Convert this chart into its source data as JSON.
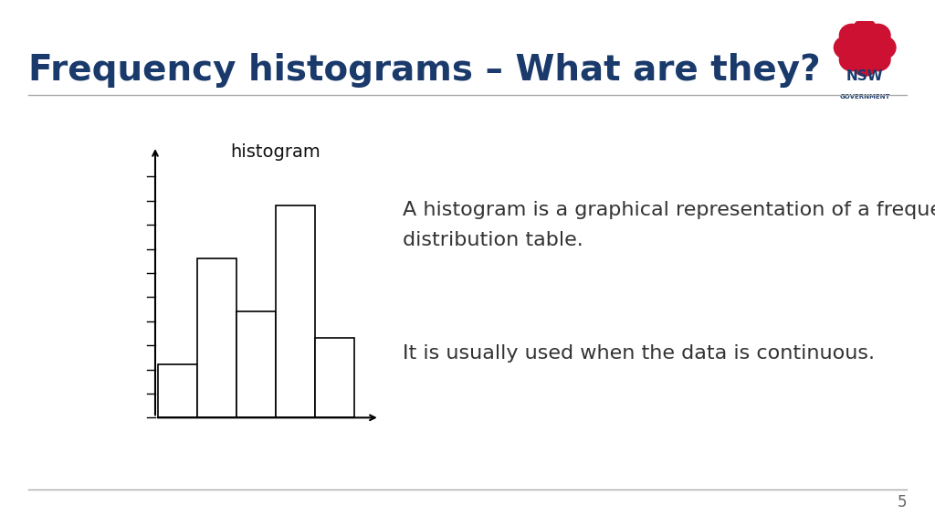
{
  "title": "Frequency histograms – What are they?",
  "title_color": "#1a3a6b",
  "title_fontsize": 28,
  "background_color": "#ffffff",
  "divider_color": "#aaaaaa",
  "histogram_label": "histogram",
  "histogram_bg": "#e8eaf0",
  "histogram_bar_heights": [
    2,
    6,
    4,
    8,
    3
  ],
  "histogram_bar_color": "#ffffff",
  "histogram_bar_edge": "#000000",
  "text1": "A histogram is a graphical representation of a frequency\ndistribution table.",
  "text2": "It is usually used when the data is continuous.",
  "text_color": "#333333",
  "text_fontsize": 16,
  "page_number": "5",
  "nsw_logo_placeholder": true
}
